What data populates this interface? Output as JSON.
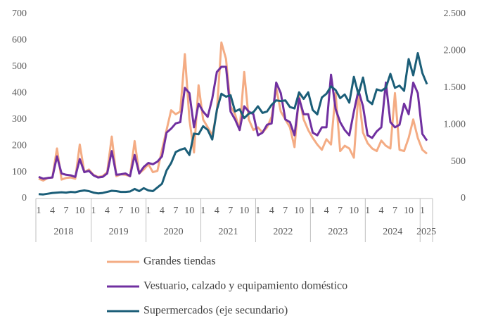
{
  "chart_data": {
    "type": "line",
    "categories": [
      "1",
      null,
      null,
      "4",
      null,
      null,
      "7",
      null,
      null,
      "10",
      null,
      null,
      "1",
      null,
      null,
      "4",
      null,
      null,
      "7",
      null,
      null,
      "10",
      null,
      null,
      "1",
      null,
      null,
      "4",
      null,
      null,
      "7",
      null,
      null,
      "10",
      null,
      null,
      "1",
      null,
      null,
      "4",
      null,
      null,
      "7",
      null,
      null,
      "10",
      null,
      null,
      "1",
      null,
      null,
      "4",
      null,
      null,
      "7",
      null,
      null,
      "10",
      null,
      null,
      "1",
      null,
      null,
      "4",
      null,
      null,
      "7",
      null,
      null,
      "10",
      null,
      null,
      "1",
      null,
      null,
      "4",
      null,
      null,
      "7",
      null,
      null,
      "10",
      null,
      null,
      "1",
      null
    ],
    "year_labels": [
      "2018",
      "2019",
      "2020",
      "2021",
      "2022",
      "2023",
      "2024",
      "2025"
    ],
    "ylim": [
      0,
      700
    ],
    "yticks": [
      0,
      100,
      200,
      300,
      400,
      500,
      600,
      700
    ],
    "y2lim": [
      0,
      2500
    ],
    "y2ticks": [
      0,
      500,
      {
        "value": 1000,
        "label": "1.000"
      },
      {
        "value": 1500,
        "label": "1.500"
      },
      {
        "value": 2000,
        "label": "2.000"
      },
      {
        "value": 2500,
        "label": "2.500"
      }
    ],
    "grid": false,
    "series": [
      {
        "name": "Grandes tiendas",
        "color": "#f4ac84",
        "values": [
          75,
          68,
          78,
          80,
          190,
          72,
          78,
          80,
          75,
          205,
          100,
          110,
          90,
          82,
          85,
          100,
          235,
          85,
          92,
          90,
          85,
          218,
          95,
          110,
          130,
          100,
          105,
          185,
          260,
          335,
          320,
          330,
          548,
          300,
          175,
          430,
          300,
          270,
          240,
          330,
          592,
          530,
          350,
          320,
          260,
          480,
          300,
          260,
          270,
          250,
          270,
          310,
          420,
          330,
          300,
          270,
          195,
          390,
          300,
          260,
          230,
          205,
          185,
          225,
          205,
          400,
          180,
          200,
          190,
          155,
          400,
          250,
          210,
          190,
          180,
          220,
          200,
          190,
          400,
          185,
          180,
          230,
          300,
          230,
          185,
          170
        ]
      },
      {
        "name": "Vestuario, calzado y equipamiento doméstico",
        "color": "#7030a0",
        "values": [
          82,
          75,
          78,
          80,
          160,
          95,
          90,
          88,
          82,
          150,
          100,
          105,
          88,
          80,
          82,
          95,
          180,
          90,
          92,
          95,
          85,
          165,
          95,
          120,
          135,
          130,
          140,
          160,
          250,
          265,
          285,
          290,
          420,
          400,
          270,
          360,
          330,
          310,
          380,
          480,
          500,
          500,
          330,
          300,
          260,
          350,
          330,
          320,
          240,
          250,
          280,
          285,
          440,
          400,
          300,
          290,
          240,
          380,
          320,
          320,
          250,
          240,
          270,
          270,
          470,
          340,
          290,
          260,
          240,
          330,
          410,
          350,
          240,
          230,
          255,
          270,
          440,
          290,
          270,
          280,
          360,
          320,
          440,
          400,
          245,
          220
        ]
      },
      {
        "name": "Supermercados (eje secundario)",
        "color": "#1b5e78",
        "axis": "y2",
        "values": [
          60,
          55,
          65,
          75,
          80,
          85,
          80,
          90,
          85,
          100,
          110,
          100,
          80,
          70,
          75,
          90,
          105,
          100,
          90,
          90,
          95,
          130,
          100,
          140,
          110,
          100,
          150,
          200,
          380,
          480,
          630,
          660,
          680,
          590,
          880,
          870,
          980,
          930,
          800,
          1200,
          1420,
          1380,
          1400,
          1180,
          1210,
          1090,
          1150,
          1170,
          1250,
          1160,
          1180,
          1270,
          1330,
          1320,
          1330,
          1240,
          1220,
          1440,
          1350,
          1440,
          1200,
          1140,
          1370,
          1420,
          1520,
          1470,
          1360,
          1410,
          1300,
          1650,
          1410,
          1640,
          1330,
          1280,
          1480,
          1460,
          1500,
          1690,
          1500,
          1530,
          1460,
          1890,
          1670,
          1970,
          1700,
          1550
        ]
      }
    ]
  }
}
